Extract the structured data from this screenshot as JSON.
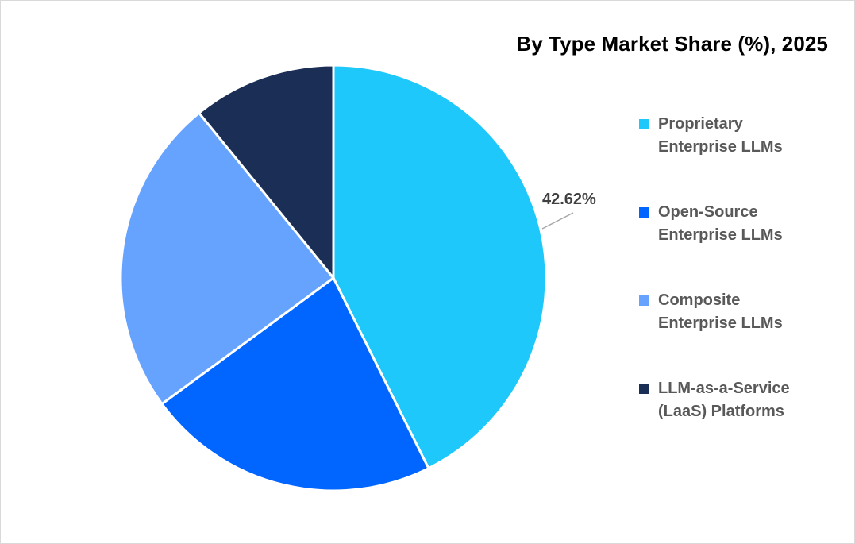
{
  "chart_data": {
    "type": "pie",
    "title": "By Type Market Share (%), 2025",
    "categories": [
      "Proprietary Enterprise LLMs",
      "Open-Source Enterprise LLMs",
      "Composite Enterprise LLMs",
      "LLM-as-a-Service (LaaS) Platforms"
    ],
    "values": [
      42.62,
      22.3,
      24.2,
      10.88
    ],
    "colors": [
      "#1ec8fb",
      "#0066ff",
      "#66a3ff",
      "#1b2e55"
    ],
    "data_labels": [
      {
        "category": "Proprietary Enterprise LLMs",
        "text": "42.62%"
      }
    ],
    "legend_position": "right",
    "start_angle": "12 o'clock, clockwise"
  },
  "title": "By Type Market Share (%), 2025",
  "legend": [
    {
      "line1": "Proprietary",
      "line2": "Enterprise LLMs",
      "color": "#1ec8fb"
    },
    {
      "line1": "Open-Source",
      "line2": "Enterprise LLMs",
      "color": "#0066ff"
    },
    {
      "line1": "Composite",
      "line2": "Enterprise LLMs",
      "color": "#66a3ff"
    },
    {
      "line1": "LLM-as-a-Service",
      "line2": "(LaaS) Platforms",
      "color": "#1b2e55"
    }
  ],
  "label_proprietary": "42.62%"
}
